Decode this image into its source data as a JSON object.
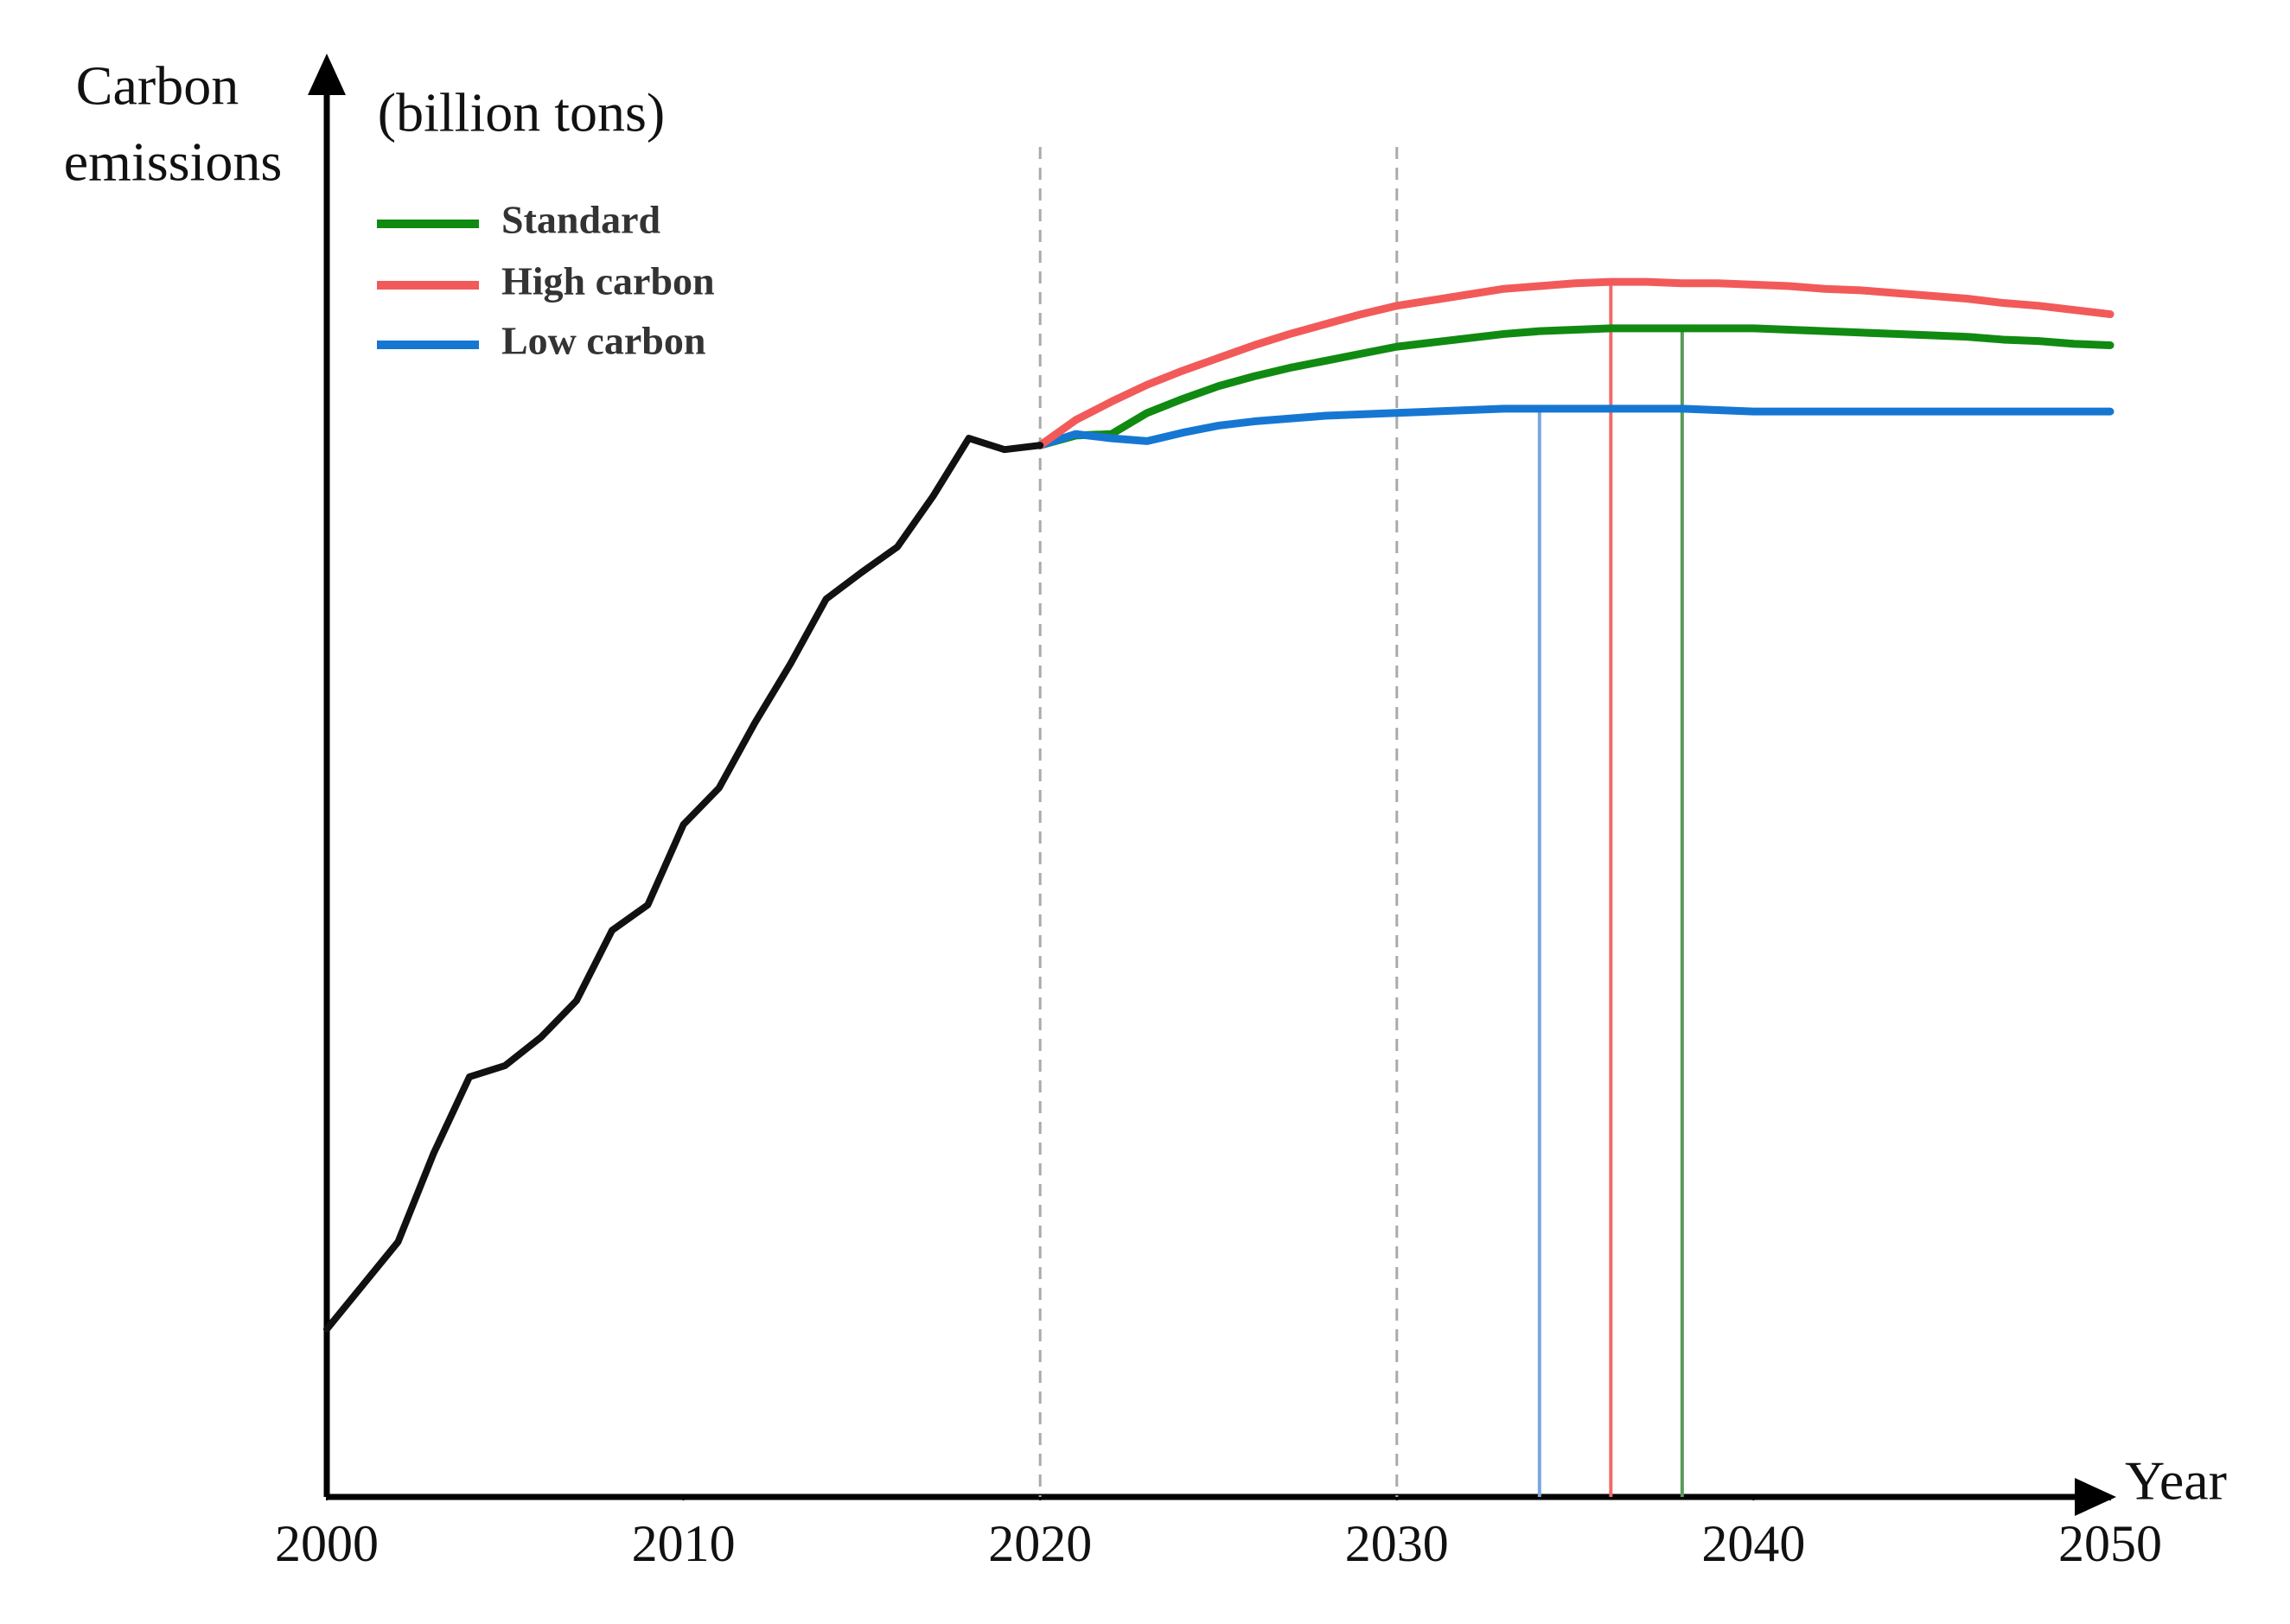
{
  "chart_data": {
    "type": "line",
    "y_label_lines": [
      "Carbon",
      "emissions"
    ],
    "y_unit": "(billion tons)",
    "x_label": "Year",
    "x": [
      2000,
      2001,
      2002,
      2003,
      2004,
      2005,
      2006,
      2007,
      2008,
      2009,
      2010,
      2011,
      2012,
      2013,
      2014,
      2015,
      2016,
      2017,
      2018,
      2019,
      2020,
      2021,
      2022,
      2023,
      2024,
      2025,
      2026,
      2027,
      2028,
      2029,
      2030,
      2031,
      2032,
      2033,
      2034,
      2035,
      2036,
      2037,
      2038,
      2039,
      2040,
      2041,
      2042,
      2043,
      2044,
      2045,
      2046,
      2047,
      2048,
      2049,
      2050
    ],
    "xlim": [
      2000,
      2050
    ],
    "xticks": [
      2000,
      2010,
      2020,
      2030,
      2040,
      2050
    ],
    "ylim": [
      0,
      100
    ],
    "history": {
      "color": "#111111",
      "values": [
        11.9,
        15,
        18.1,
        24.4,
        29.8,
        30.6,
        32.6,
        35.2,
        40.2,
        42,
        47.7,
        50.3,
        54.9,
        59.1,
        63.7,
        65.6,
        67.4,
        71,
        75.1,
        74.3,
        74.6,
        null,
        null,
        null,
        null,
        null,
        null,
        null,
        null,
        null,
        null,
        null,
        null,
        null,
        null,
        null,
        null,
        null,
        null,
        null,
        null,
        null,
        null,
        null,
        null,
        null,
        null,
        null,
        null,
        null,
        null
      ]
    },
    "series": [
      {
        "name": "Standard",
        "color": "#118a11",
        "values": [
          null,
          null,
          null,
          null,
          null,
          null,
          null,
          null,
          null,
          null,
          null,
          null,
          null,
          null,
          null,
          null,
          null,
          null,
          null,
          null,
          74.6,
          75.3,
          75.4,
          76.9,
          77.9,
          78.8,
          79.5,
          80.1,
          80.6,
          81.1,
          81.6,
          81.9,
          82.2,
          82.5,
          82.7,
          82.8,
          82.9,
          82.9,
          82.9,
          82.9,
          82.9,
          82.8,
          82.7,
          82.6,
          82.5,
          82.4,
          82.3,
          82.1,
          82.0,
          81.8,
          81.7
        ]
      },
      {
        "name": "High carbon",
        "color": "#f25a5a",
        "values": [
          null,
          null,
          null,
          null,
          null,
          null,
          null,
          null,
          null,
          null,
          null,
          null,
          null,
          null,
          null,
          null,
          null,
          null,
          null,
          null,
          74.6,
          76.4,
          77.7,
          78.9,
          79.9,
          80.8,
          81.7,
          82.5,
          83.2,
          83.9,
          84.5,
          84.9,
          85.3,
          85.7,
          85.9,
          86.1,
          86.2,
          86.2,
          86.1,
          86.1,
          86.0,
          85.9,
          85.7,
          85.6,
          85.4,
          85.2,
          85.0,
          84.7,
          84.5,
          84.2,
          83.9
        ]
      },
      {
        "name": "Low carbon",
        "color": "#1677d2",
        "values": [
          null,
          null,
          null,
          null,
          null,
          null,
          null,
          null,
          null,
          null,
          null,
          null,
          null,
          null,
          null,
          null,
          null,
          null,
          null,
          null,
          74.6,
          75.4,
          75.1,
          74.9,
          75.5,
          76.0,
          76.3,
          76.5,
          76.7,
          76.8,
          76.9,
          77.0,
          77.1,
          77.2,
          77.2,
          77.2,
          77.2,
          77.2,
          77.2,
          77.1,
          77.0,
          77.0,
          77.0,
          77.0,
          77.0,
          77.0,
          77.0,
          77.0,
          77.0,
          77.0,
          77.0
        ]
      }
    ],
    "reference_lines": [
      {
        "x": 2020,
        "color": "#aaaaaa"
      },
      {
        "x": 2030,
        "color": "#aaaaaa"
      }
    ],
    "peak_lines": [
      {
        "x": 2034,
        "color": "#7aa7dd"
      },
      {
        "x": 2036,
        "color": "#f06a6a"
      },
      {
        "x": 2038,
        "color": "#5a9a5a"
      }
    ]
  }
}
